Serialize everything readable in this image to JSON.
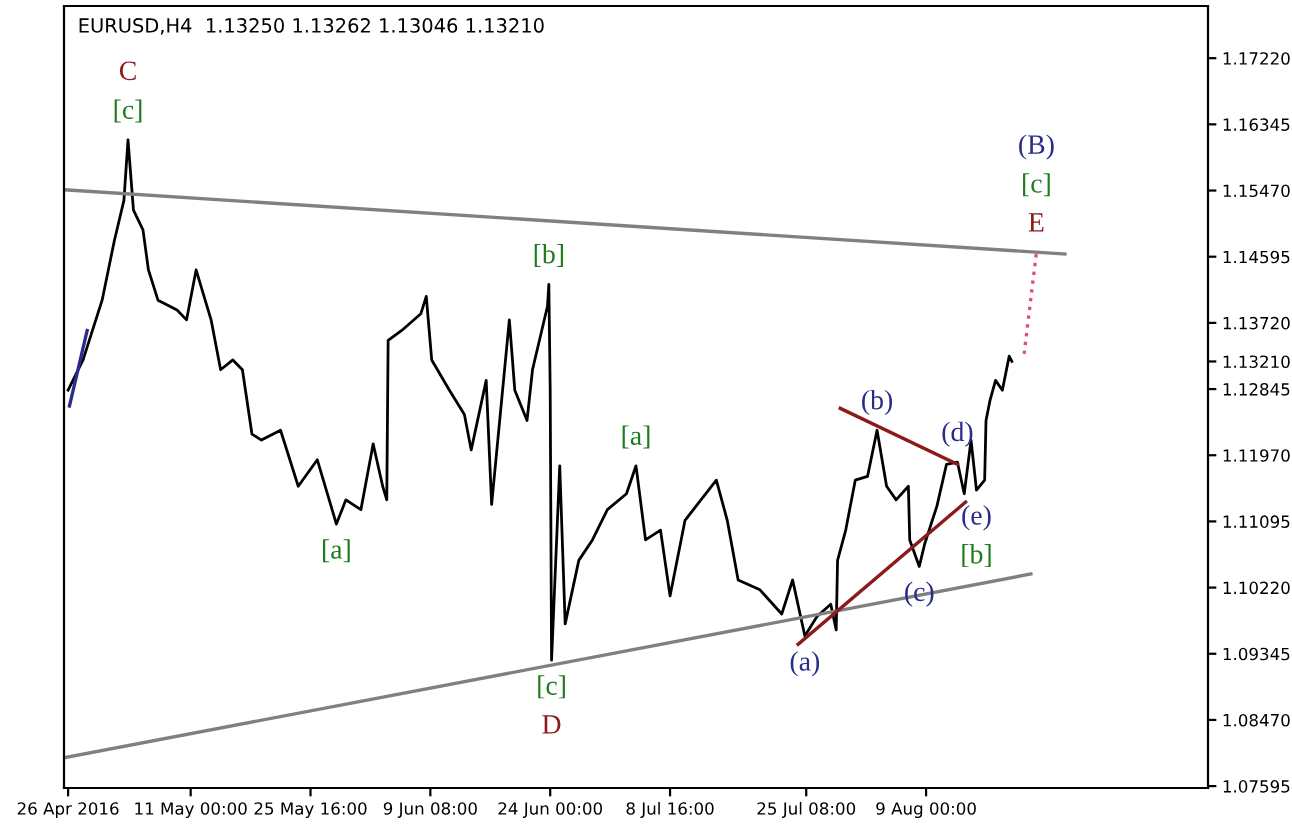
{
  "chart_data": {
    "type": "line",
    "title": "EURUSD,H4  1.13250 1.13262 1.13046 1.13210",
    "xlim": [
      "2016-04-25T12:00",
      "2016-09-12T12:00"
    ],
    "xticks": [
      {
        "value": "2016-04-26T00:00",
        "label": "26 Apr 2016"
      },
      {
        "value": "2016-05-11T00:00",
        "label": "11 May 00:00"
      },
      {
        "value": "2016-05-25T16:00",
        "label": "25 May 16:00"
      },
      {
        "value": "2016-06-09T08:00",
        "label": "9 Jun 08:00"
      },
      {
        "value": "2016-06-24T00:00",
        "label": "24 Jun 00:00"
      },
      {
        "value": "2016-07-08T16:00",
        "label": "8 Jul 16:00"
      },
      {
        "value": "2016-07-25T08:00",
        "label": "25 Jul 08:00"
      },
      {
        "value": "2016-08-09T00:00",
        "label": "9 Aug 00:00"
      }
    ],
    "ylim": [
      1.0757,
      1.1791
    ],
    "yticks": [
      {
        "value": 1.1722,
        "label": "1.17220"
      },
      {
        "value": 1.16345,
        "label": "1.16345"
      },
      {
        "value": 1.1547,
        "label": "1.15470"
      },
      {
        "value": 1.14595,
        "label": "1.14595"
      },
      {
        "value": 1.1372,
        "label": "1.13720"
      },
      {
        "value": 1.1321,
        "label": "1.13210"
      },
      {
        "value": 1.12845,
        "label": "1.12845"
      },
      {
        "value": 1.1197,
        "label": "1.11970"
      },
      {
        "value": 1.11095,
        "label": "1.11095"
      },
      {
        "value": 1.1022,
        "label": "1.10220"
      },
      {
        "value": 1.09345,
        "label": "1.09345"
      },
      {
        "value": 1.0847,
        "label": "1.08470"
      },
      {
        "value": 1.07595,
        "label": "1.07595"
      }
    ],
    "grid": false,
    "legend": false,
    "marker": "none",
    "series": [
      {
        "color": "#000000",
        "x": [
          "2016-04-26T00:00",
          "2016-04-27T20:00",
          "2016-04-30T04:00",
          "2016-05-01T16:00",
          "2016-05-02T20:00",
          "2016-05-03T08:00",
          "2016-05-04T00:00",
          "2016-05-05T04:00",
          "2016-05-05T20:00",
          "2016-05-07T00:00",
          "2016-05-09T08:00",
          "2016-05-10T12:00",
          "2016-05-11T16:00",
          "2016-05-13T12:00",
          "2016-05-14T16:00",
          "2016-05-16T04:00",
          "2016-05-17T08:00",
          "2016-05-18T12:00",
          "2016-05-19T16:00",
          "2016-05-22T00:00",
          "2016-05-24T04:00",
          "2016-05-26T12:00",
          "2016-05-28T20:00",
          "2016-05-30T00:00",
          "2016-05-31T20:00",
          "2016-06-02T08:00",
          "2016-06-03T12:00",
          "2016-06-04T00:00",
          "2016-06-04T04:00",
          "2016-06-05T20:00",
          "2016-06-08T04:00",
          "2016-06-08T20:00",
          "2016-06-09T12:00",
          "2016-06-11T16:00",
          "2016-06-13T12:00",
          "2016-06-14T08:00",
          "2016-06-16T04:00",
          "2016-06-16T20:00",
          "2016-06-19T00:00",
          "2016-06-19T16:00",
          "2016-06-21T04:00",
          "2016-06-21T20:00",
          "2016-06-23T16:00",
          "2016-06-23T20:00",
          "2016-06-24T00:00",
          "2016-06-24T04:00",
          "2016-06-25T04:00",
          "2016-06-25T20:00",
          "2016-06-27T12:00",
          "2016-06-29T04:00",
          "2016-07-01T00:00",
          "2016-07-03T08:00",
          "2016-07-04T12:00",
          "2016-07-05T16:00",
          "2016-07-07T12:00",
          "2016-07-08T16:00",
          "2016-07-10T12:00",
          "2016-07-14T08:00",
          "2016-07-15T16:00",
          "2016-07-17T00:00",
          "2016-07-19T16:00",
          "2016-07-22T08:00",
          "2016-07-23T16:00",
          "2016-07-25T04:00",
          "2016-07-26T16:00",
          "2016-07-28T08:00",
          "2016-07-29T00:00",
          "2016-07-29T04:00",
          "2016-07-30T04:00",
          "2016-07-31T08:00",
          "2016-08-01T20:00",
          "2016-08-03T00:00",
          "2016-08-04T04:00",
          "2016-08-05T08:00",
          "2016-08-06T20:00",
          "2016-08-07T00:00",
          "2016-08-08T04:00",
          "2016-08-08T20:00",
          "2016-08-10T08:00",
          "2016-08-11T12:00",
          "2016-08-12T20:00",
          "2016-08-13T16:00",
          "2016-08-14T12:00",
          "2016-08-15T04:00",
          "2016-08-16T04:00",
          "2016-08-16T08:00",
          "2016-08-16T20:00",
          "2016-08-17T12:00",
          "2016-08-18T08:00",
          "2016-08-19T04:00",
          "2016-08-19T12:00"
        ],
        "values": [
          1.1283,
          1.1323,
          1.1402,
          1.1481,
          1.1534,
          1.1614,
          1.1521,
          1.1495,
          1.1442,
          1.1402,
          1.1389,
          1.1376,
          1.1442,
          1.1376,
          1.131,
          1.1323,
          1.131,
          1.1225,
          1.1217,
          1.123,
          1.1156,
          1.1191,
          1.1106,
          1.1138,
          1.1125,
          1.1212,
          1.1156,
          1.1138,
          1.1349,
          1.1362,
          1.1384,
          1.1407,
          1.1323,
          1.1283,
          1.1251,
          1.1204,
          1.1296,
          1.1132,
          1.1376,
          1.1283,
          1.1243,
          1.131,
          1.1394,
          1.1423,
          1.1283,
          1.0926,
          1.1183,
          1.0974,
          1.1058,
          1.1085,
          1.1125,
          1.1146,
          1.1183,
          1.1085,
          1.1098,
          1.1011,
          1.1111,
          1.1164,
          1.1111,
          1.1032,
          1.1019,
          1.0987,
          1.1032,
          1.0958,
          1.0984,
          1.1,
          1.0966,
          1.1058,
          1.1098,
          1.1164,
          1.1169,
          1.123,
          1.1156,
          1.1138,
          1.1156,
          1.1085,
          1.105,
          1.108,
          1.113,
          1.1185,
          1.1188,
          1.1146,
          1.1217,
          1.1151,
          1.1164,
          1.1243,
          1.127,
          1.1296,
          1.1283,
          1.1328,
          1.1321
        ]
      },
      {
        "color": "#2b2b8c",
        "x": [
          "2016-04-26T04:00",
          "2016-04-28T08:00"
        ],
        "values": [
          1.1262,
          1.1362
        ]
      },
      {
        "color": "#808080",
        "x": [
          "2016-04-25T12:00",
          "2016-08-26T00:00"
        ],
        "values": [
          1.1548,
          1.1463
        ]
      },
      {
        "color": "#808080",
        "x": [
          "2016-04-25T12:00",
          "2016-08-21T20:00"
        ],
        "values": [
          1.0797,
          1.104
        ]
      },
      {
        "color": "#8b1a1a",
        "x": [
          "2016-07-24T08:00",
          "2016-08-13T20:00"
        ],
        "values": [
          1.0947,
          1.1135
        ]
      },
      {
        "color": "#8b1a1a",
        "x": [
          "2016-07-29T12:00",
          "2016-08-12T20:00"
        ],
        "values": [
          1.1259,
          1.1185
        ]
      },
      {
        "color": "#e0506e",
        "line_style": "dotted",
        "x": [
          "2016-08-21T00:00",
          "2016-08-22T12:00"
        ],
        "values": [
          1.1331,
          1.1465
        ]
      }
    ],
    "annotations": [
      {
        "text": "[c]",
        "x": "2016-05-03T08:00",
        "y": 1.1614
      },
      {
        "text": "C",
        "x": "2016-05-03T08:00",
        "y": 1.1614
      },
      {
        "text": "[a]",
        "x": "2016-05-28T20:00",
        "y": 1.1106
      },
      {
        "text": "[b]",
        "x": "2016-06-23T20:00",
        "y": 1.1423
      },
      {
        "text": "[c]",
        "x": "2016-06-24T04:00",
        "y": 1.0926
      },
      {
        "text": "D",
        "x": "2016-06-24T04:00",
        "y": 1.0926
      },
      {
        "text": "[a]",
        "x": "2016-07-04T12:00",
        "y": 1.1183
      },
      {
        "text": "(a)",
        "x": "2016-07-25T04:00",
        "y": 1.0958
      },
      {
        "text": "(b)",
        "x": "2016-08-03T00:00",
        "y": 1.123
      },
      {
        "text": "(c)",
        "x": "2016-08-08T04:00",
        "y": 1.105
      },
      {
        "text": "(d)",
        "x": "2016-08-12T20:00",
        "y": 1.1188
      },
      {
        "text": "(e)",
        "x": "2016-08-15T04:00",
        "y": 1.1151
      },
      {
        "text": "[b]",
        "x": "2016-08-15T04:00",
        "y": 1.1151
      },
      {
        "text": "E",
        "x": "2016-08-22T12:00",
        "y": 1.1465
      },
      {
        "text": "[c]",
        "x": "2016-08-22T12:00",
        "y": 1.1465
      },
      "(B)"
    ]
  }
}
